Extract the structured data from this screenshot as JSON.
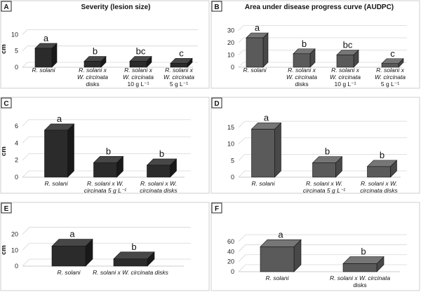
{
  "figure": {
    "title_left": "Severity (lesion size)",
    "title_right": "Area under disease progress curve (AUDPC)"
  },
  "chart_data": [
    {
      "panel": "A",
      "type": "bar",
      "title": "Severity (lesion size)",
      "ylabel": "cm",
      "ylim": [
        0,
        12
      ],
      "yticks": [
        0,
        5,
        10
      ],
      "bar_color": "#2b2b2b",
      "categories": [
        [
          "R. solani"
        ],
        [
          "R. solani x",
          "W. circinata",
          "disks"
        ],
        [
          "R. solani x",
          "W. circinata",
          "10 g L⁻¹"
        ],
        [
          "R. solani x",
          "W. circinata",
          "5 g L⁻¹"
        ]
      ],
      "values": [
        5.8,
        1.8,
        1.8,
        1.2
      ],
      "significance": [
        "a",
        "b",
        "bc",
        "c"
      ]
    },
    {
      "panel": "B",
      "type": "bar",
      "title": "Area under disease progress curve (AUDPC)",
      "ylabel": "",
      "ylim": [
        0,
        32
      ],
      "yticks": [
        0,
        10,
        20,
        30
      ],
      "bar_color": "#5a5a5a",
      "categories": [
        [
          "R. solani"
        ],
        [
          "R. solani x",
          "W. circinata",
          "disks"
        ],
        [
          "R. solani x",
          "W. circinata",
          "10 g L⁻¹"
        ],
        [
          "R. solani x",
          "W. circinata",
          "5 g L⁻¹"
        ]
      ],
      "values": [
        24,
        11,
        10,
        3
      ],
      "significance": [
        "a",
        "b",
        "bc",
        "c"
      ]
    },
    {
      "panel": "C",
      "type": "bar",
      "title": "",
      "ylabel": "cm",
      "ylim": [
        0,
        6.4
      ],
      "yticks": [
        0,
        2,
        4,
        6
      ],
      "bar_color": "#2b2b2b",
      "categories": [
        [
          "R. solani"
        ],
        [
          "R. solani x W.",
          "circinata  5 g L⁻¹"
        ],
        [
          "R. solani x W.",
          "circinata  disks"
        ]
      ],
      "values": [
        5.5,
        1.7,
        1.4
      ],
      "significance": [
        "a",
        "b",
        "b"
      ]
    },
    {
      "panel": "D",
      "type": "bar",
      "title": "",
      "ylabel": "",
      "ylim": [
        0,
        16.5
      ],
      "yticks": [
        0,
        5,
        10,
        15
      ],
      "bar_color": "#5a5a5a",
      "categories": [
        [
          "R. solani"
        ],
        [
          "R. solani x W.",
          "circinata  5 g L⁻¹"
        ],
        [
          "R. solani x W.",
          "circinata  disks"
        ]
      ],
      "values": [
        14.5,
        4.3,
        3.2
      ],
      "significance": [
        "a",
        "b",
        "b"
      ]
    },
    {
      "panel": "E",
      "type": "bar",
      "title": "",
      "ylabel": "cm",
      "ylim": [
        0,
        22
      ],
      "yticks": [
        0,
        10,
        20
      ],
      "bar_color": "#2b2b2b",
      "categories": [
        [
          "R. solani"
        ],
        [
          "R. solani x W. circinata  disks"
        ]
      ],
      "values": [
        12.5,
        4.5
      ],
      "significance": [
        "a",
        "b"
      ]
    },
    {
      "panel": "F",
      "type": "bar",
      "title": "",
      "ylabel": "",
      "ylim": [
        0,
        70
      ],
      "yticks": [
        0,
        20,
        40,
        60
      ],
      "bar_color": "#5a5a5a",
      "categories": [
        [
          "R. solani"
        ],
        [
          "R. solani x W. circinata",
          "disks"
        ]
      ],
      "values": [
        50,
        16
      ],
      "significance": [
        "a",
        "b"
      ]
    }
  ]
}
